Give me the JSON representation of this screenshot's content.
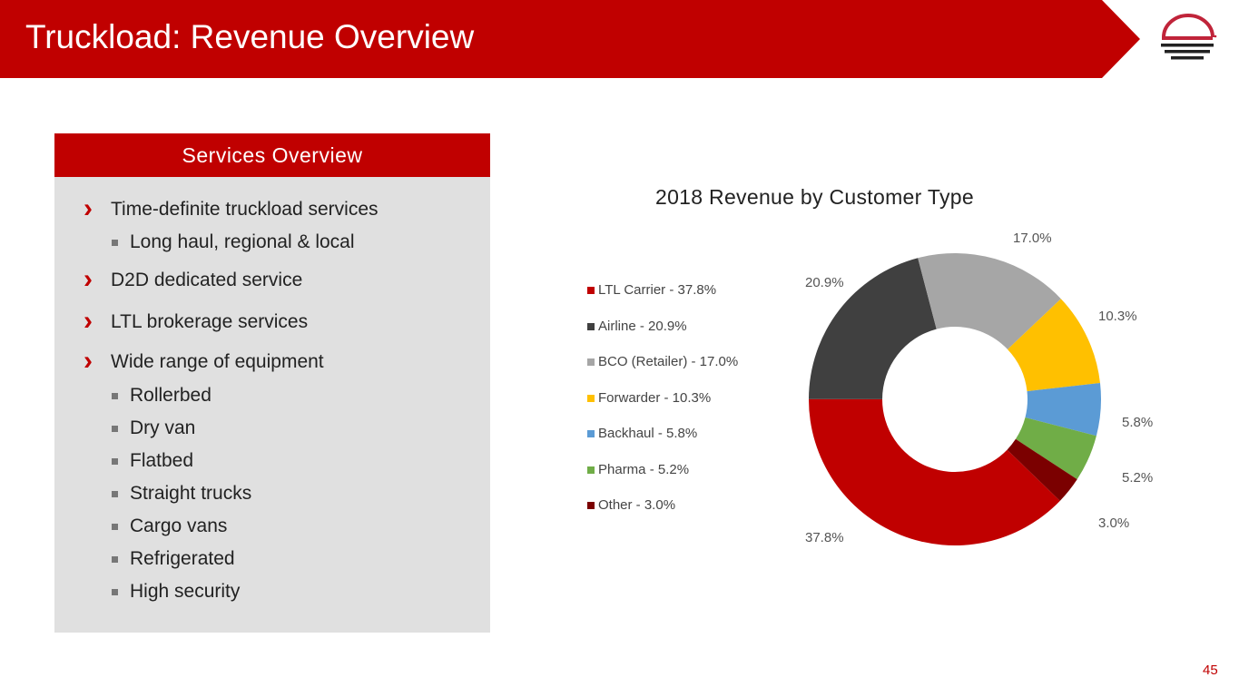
{
  "header": {
    "title": "Truckload: Revenue Overview"
  },
  "panel": {
    "title": "Services Overview",
    "items": [
      {
        "level": 1,
        "text": "Time-definite truckload services"
      },
      {
        "level": 2,
        "text": "Long haul, regional & local"
      },
      {
        "level": 1,
        "text": "D2D dedicated service"
      },
      {
        "level": 1,
        "text": "LTL brokerage services"
      },
      {
        "level": 1,
        "text": "Wide range of equipment"
      },
      {
        "level": 2,
        "text": "Rollerbed"
      },
      {
        "level": 2,
        "text": "Dry van"
      },
      {
        "level": 2,
        "text": "Flatbed"
      },
      {
        "level": 2,
        "text": "Straight trucks"
      },
      {
        "level": 2,
        "text": "Cargo vans"
      },
      {
        "level": 2,
        "text": "Refrigerated"
      },
      {
        "level": 2,
        "text": "High security"
      }
    ]
  },
  "chart_data": {
    "type": "pie",
    "donut": true,
    "title": "2018 Revenue by Customer Type",
    "legend_position": "left",
    "categories": [
      "LTL Carrier",
      "Airline",
      "BCO (Retailer)",
      "Forwarder",
      "Backhaul",
      "Pharma",
      "Other"
    ],
    "values": [
      37.8,
      20.9,
      17.0,
      10.3,
      5.8,
      5.2,
      3.0
    ],
    "legend_labels": [
      "LTL Carrier - 37.8%",
      "Airline - 20.9%",
      "BCO (Retailer) - 17.0%",
      "Forwarder - 10.3%",
      "Backhaul - 5.8%",
      "Pharma - 5.2%",
      "Other - 3.0%"
    ],
    "data_labels": [
      "37.8%",
      "20.9%",
      "17.0%",
      "10.3%",
      "5.8%",
      "5.2%",
      "3.0%"
    ],
    "colors": [
      "#c00000",
      "#404040",
      "#a6a6a6",
      "#ffc000",
      "#5b9bd5",
      "#70ad47",
      "#7b0000"
    ]
  },
  "page_number": "45"
}
